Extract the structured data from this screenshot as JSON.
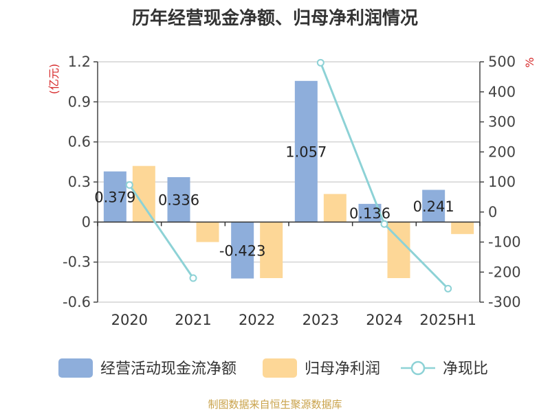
{
  "title": "历年经营现金净额、归母净利润情况",
  "source": "制图数据来自恒生聚源数据库",
  "chart_data": {
    "type": "bar",
    "categories": [
      "2020",
      "2021",
      "2022",
      "2023",
      "2024",
      "2025H1"
    ],
    "y_left": {
      "unit": "(亿元)",
      "ylim": [
        -0.6,
        1.2
      ],
      "ticks": [
        "1.2",
        "0.9",
        "0.6",
        "0.3",
        "0",
        "-0.3",
        "-0.6"
      ]
    },
    "y_right": {
      "unit": "%",
      "ylim": [
        -300,
        500
      ],
      "ticks": [
        "500",
        "400",
        "300",
        "200",
        "100",
        "0",
        "-100",
        "-200",
        "-300"
      ]
    },
    "series": [
      {
        "name": "经营活动现金流净额",
        "type": "bar",
        "axis": "left",
        "color": "#8eaedb",
        "values": [
          0.379,
          0.336,
          -0.423,
          1.057,
          0.136,
          0.241
        ],
        "labels": [
          "0.379",
          "0.336",
          "-0.423",
          "1.057",
          "0.136",
          "0.241"
        ]
      },
      {
        "name": "归母净利润",
        "type": "bar",
        "axis": "left",
        "color": "#fdd797",
        "values": [
          0.42,
          -0.15,
          -0.42,
          0.21,
          -0.42,
          -0.09
        ]
      },
      {
        "name": "净现比",
        "type": "line",
        "axis": "right",
        "color": "#8dd2d6",
        "values": [
          90,
          -220,
          null,
          497,
          -40,
          -255
        ]
      }
    ],
    "grid": true,
    "legend_position": "bottom"
  }
}
